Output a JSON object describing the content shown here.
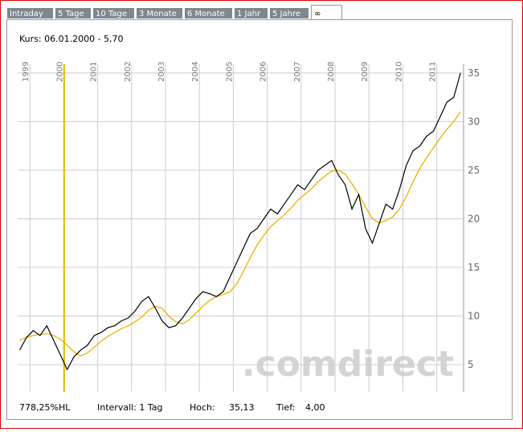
{
  "tabs": [
    "Intraday",
    "5 Tage",
    "10 Tage",
    "3 Monate",
    "6 Monate",
    "1 Jahr",
    "5 Jahre",
    "∞"
  ],
  "active_tab": 7,
  "cursor_label": "Kurs: 06.01.2000 - 5,70",
  "footer": {
    "performance": "778,25%HL",
    "interval": "Intervall: 1 Tag",
    "high_label": "Hoch:",
    "high": "35,13",
    "low_label": "Tief:",
    "low": "4,00"
  },
  "watermark": ".comdirect",
  "chart_data": {
    "type": "line",
    "x": [
      1998.7,
      1998.9,
      1999.1,
      1999.3,
      1999.5,
      1999.7,
      1999.9,
      2000.1,
      2000.3,
      2000.5,
      2000.7,
      2000.9,
      2001.1,
      2001.3,
      2001.5,
      2001.7,
      2001.9,
      2002.1,
      2002.3,
      2002.5,
      2002.7,
      2002.9,
      2003.1,
      2003.3,
      2003.5,
      2003.7,
      2003.9,
      2004.1,
      2004.3,
      2004.5,
      2004.7,
      2004.9,
      2005.1,
      2005.3,
      2005.5,
      2005.7,
      2005.9,
      2006.1,
      2006.3,
      2006.5,
      2006.7,
      2006.9,
      2007.1,
      2007.3,
      2007.5,
      2007.7,
      2007.9,
      2008.1,
      2008.3,
      2008.5,
      2008.7,
      2008.9,
      2009.1,
      2009.3,
      2009.5,
      2009.7,
      2009.9,
      2010.1,
      2010.3,
      2010.5,
      2010.7,
      2010.9,
      2011.1,
      2011.3,
      2011.5,
      2011.7
    ],
    "series": [
      {
        "color": "#000000",
        "values": [
          6.5,
          7.8,
          8.5,
          8.0,
          9.0,
          7.5,
          6.0,
          4.5,
          5.8,
          6.5,
          7.0,
          8.0,
          8.3,
          8.8,
          9.0,
          9.5,
          9.8,
          10.5,
          11.5,
          12.0,
          10.8,
          9.5,
          8.8,
          9.0,
          9.8,
          10.8,
          11.8,
          12.5,
          12.3,
          12.0,
          12.5,
          14.0,
          15.5,
          17.0,
          18.5,
          19.0,
          20.0,
          21.0,
          20.5,
          21.5,
          22.5,
          23.5,
          23.0,
          24.0,
          25.0,
          25.5,
          26.0,
          24.5,
          23.5,
          21.0,
          22.5,
          19.0,
          17.5,
          19.5,
          21.5,
          21.0,
          23.0,
          25.5,
          27.0,
          27.5,
          28.5,
          29.0,
          30.5,
          32.0,
          32.5,
          35.0
        ]
      },
      {
        "color": "#e8b400",
        "values": [
          7.5,
          7.8,
          8.0,
          8.1,
          8.2,
          8.0,
          7.6,
          7.0,
          6.3,
          5.9,
          6.2,
          6.8,
          7.4,
          7.9,
          8.3,
          8.7,
          9.0,
          9.4,
          9.9,
          10.6,
          11.0,
          10.8,
          10.0,
          9.4,
          9.2,
          9.6,
          10.3,
          11.0,
          11.6,
          12.0,
          12.2,
          12.5,
          13.3,
          14.6,
          16.0,
          17.3,
          18.3,
          19.2,
          19.8,
          20.4,
          21.1,
          21.9,
          22.5,
          23.1,
          23.8,
          24.4,
          24.9,
          25.0,
          24.6,
          23.6,
          22.5,
          21.2,
          20.0,
          19.6,
          19.8,
          20.2,
          21.0,
          22.3,
          23.8,
          25.2,
          26.3,
          27.3,
          28.3,
          29.2,
          30.0,
          31.0
        ]
      }
    ],
    "cursor_x": 2000.01,
    "xlim": [
      1998.64,
      2011.79
    ],
    "xticks": [
      1999,
      2000,
      2001,
      2002,
      2003,
      2004,
      2005,
      2006,
      2007,
      2008,
      2009,
      2010,
      2011
    ],
    "ylim": [
      2.2,
      35.9
    ],
    "yticks": [
      5,
      10,
      15,
      20,
      25,
      30,
      35
    ],
    "grid": true
  }
}
